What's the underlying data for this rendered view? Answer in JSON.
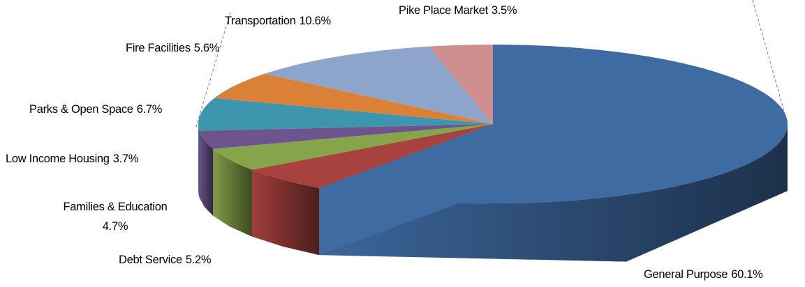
{
  "chart_data": {
    "type": "pie",
    "categories": [
      "General Purpose",
      "Debt Service",
      "Families & Education",
      "Low Income  Housing",
      "Parks & Open Space",
      "Fire Facilities",
      "Transportation",
      "Pike Place Market"
    ],
    "values": [
      60.1,
      5.2,
      4.7,
      3.7,
      6.7,
      5.6,
      10.6,
      3.5
    ],
    "value_labels": [
      "60.1%",
      "5.2%",
      "4.7%",
      "3.7%",
      "6.7%",
      "5.6%",
      "10.6%",
      "3.5%"
    ],
    "colors": [
      "#3f6ba3",
      "#a8423f",
      "#86a44a",
      "#6e548d",
      "#3d96ae",
      "#da8137",
      "#8ea5cb",
      "#ce8e8d"
    ]
  }
}
